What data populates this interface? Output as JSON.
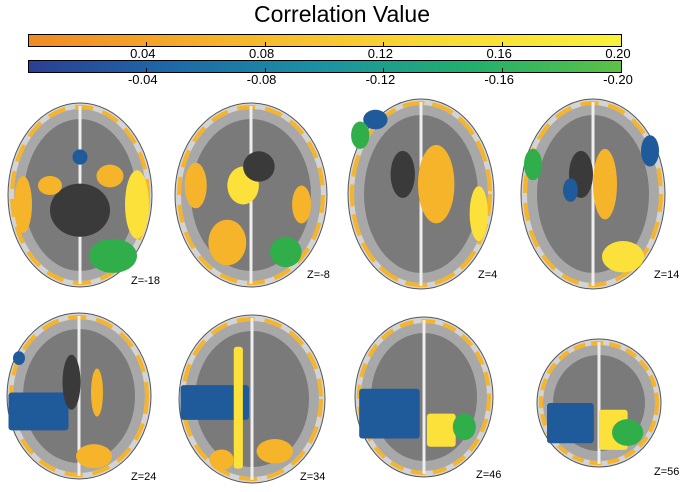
{
  "title": "Correlation Value",
  "positive_scale": {
    "colors": [
      "#f08a24",
      "#f6b42a",
      "#f9d833",
      "#fbf13a"
    ],
    "ticks": [
      "0.04",
      "0.08",
      "0.12",
      "0.16",
      "0.20"
    ]
  },
  "negative_scale": {
    "colors": [
      "#2b3f94",
      "#1d6aa8",
      "#1b93a3",
      "#22b06b",
      "#5cc245"
    ],
    "ticks": [
      "-0.04",
      "-0.08",
      "-0.12",
      "-0.16",
      "-0.20"
    ]
  },
  "slices": [
    {
      "label": "Z=-18"
    },
    {
      "label": "Z=-8"
    },
    {
      "label": "Z=4"
    },
    {
      "label": "Z=14"
    },
    {
      "label": "Z=24"
    },
    {
      "label": "Z=34"
    },
    {
      "label": "Z=46"
    },
    {
      "label": "Z=56"
    }
  ],
  "colors": {
    "gray_matter": "#7a7a7a",
    "white_matter": "#a8a8a8",
    "light_tissue": "#d4d4d4",
    "deep_structure": "#3a3a3a",
    "positive": "#f6b42a",
    "positive_strong": "#fbe13a",
    "negative_blue": "#1f5a9a",
    "negative_green": "#2fae4a"
  }
}
